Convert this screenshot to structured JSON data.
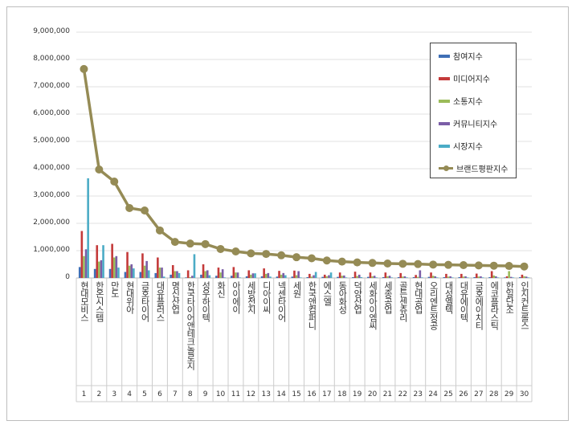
{
  "chart_data": {
    "type": "bar",
    "categories": [
      "1",
      "2",
      "3",
      "4",
      "5",
      "6",
      "7",
      "8",
      "9",
      "10",
      "11",
      "12",
      "13",
      "14",
      "15",
      "16",
      "17",
      "18",
      "19",
      "20",
      "21",
      "22",
      "23",
      "24",
      "25",
      "26",
      "27",
      "28",
      "29",
      "30"
    ],
    "category_names": [
      "현대모비스",
      "한온시스템",
      "만도",
      "현대위아",
      "금호타이어",
      "대유플러스",
      "명신산업",
      "한국타이어앤테크놀로지",
      "성우하이텍",
      "화신",
      "아이에이",
      "세방전지",
      "디아이씨",
      "넥센타이어",
      "세원",
      "한국앤컴퍼니",
      "에스엘",
      "동아화성",
      "덕양산업",
      "세화아이엠씨",
      "세종공업",
      "골든센츄리",
      "현대공업",
      "오리엔트정공",
      "대성엘텍",
      "대유에이텍",
      "금호에이치티",
      "에코플라스틱",
      "한일단조",
      "인지컨트롤스"
    ],
    "ylim": [
      0,
      9000000
    ],
    "yticks": [
      "0",
      "1,000,000",
      "2,000,000",
      "3,000,000",
      "4,000,000",
      "5,000,000",
      "6,000,000",
      "7,000,000",
      "8,000,000",
      "9,000,000"
    ],
    "grid": true,
    "legend_position": "top-right",
    "series": [
      {
        "name": "참여지수",
        "kind": "bar",
        "color": "#3f6fb5",
        "values": [
          400000,
          330000,
          330000,
          220000,
          220000,
          180000,
          120000,
          20000,
          120000,
          80000,
          80000,
          60000,
          60000,
          50000,
          50000,
          30000,
          40000,
          40000,
          30000,
          40000,
          30000,
          30000,
          30000,
          40000,
          30000,
          30000,
          30000,
          30000,
          20000,
          30000
        ]
      },
      {
        "name": "미디어지수",
        "kind": "bar",
        "color": "#c43a3a",
        "values": [
          1720000,
          1200000,
          1250000,
          950000,
          900000,
          750000,
          470000,
          280000,
          500000,
          380000,
          400000,
          280000,
          350000,
          260000,
          270000,
          150000,
          120000,
          200000,
          230000,
          200000,
          200000,
          180000,
          110000,
          200000,
          150000,
          150000,
          160000,
          250000,
          60000,
          120000
        ]
      },
      {
        "name": "소통지수",
        "kind": "bar",
        "color": "#9bbb59",
        "values": [
          800000,
          600000,
          750000,
          450000,
          450000,
          380000,
          250000,
          30000,
          250000,
          200000,
          200000,
          120000,
          150000,
          120000,
          100000,
          50000,
          60000,
          80000,
          70000,
          60000,
          60000,
          50000,
          40000,
          80000,
          50000,
          50000,
          50000,
          90000,
          250000,
          60000
        ]
      },
      {
        "name": "커뮤니티지수",
        "kind": "bar",
        "color": "#7b5ea7",
        "values": [
          1050000,
          650000,
          800000,
          500000,
          620000,
          380000,
          250000,
          80000,
          280000,
          320000,
          200000,
          170000,
          180000,
          180000,
          250000,
          100000,
          100000,
          90000,
          120000,
          80000,
          80000,
          60000,
          280000,
          60000,
          60000,
          60000,
          60000,
          60000,
          40000,
          50000
        ]
      },
      {
        "name": "시장지수",
        "kind": "bar",
        "color": "#4bacc6",
        "values": [
          3650000,
          1200000,
          380000,
          350000,
          280000,
          50000,
          180000,
          870000,
          100000,
          20000,
          20000,
          170000,
          50000,
          100000,
          20000,
          220000,
          200000,
          20000,
          30000,
          20000,
          20000,
          20000,
          20000,
          20000,
          20000,
          20000,
          20000,
          20000,
          20000,
          20000
        ]
      },
      {
        "name": "브랜드평판지수",
        "kind": "line",
        "color": "#958b55",
        "values": [
          7650000,
          3970000,
          3530000,
          2560000,
          2470000,
          1740000,
          1320000,
          1260000,
          1240000,
          1060000,
          970000,
          900000,
          880000,
          830000,
          760000,
          720000,
          640000,
          600000,
          570000,
          550000,
          530000,
          520000,
          510000,
          490000,
          480000,
          470000,
          460000,
          450000,
          440000,
          420000
        ]
      }
    ]
  }
}
